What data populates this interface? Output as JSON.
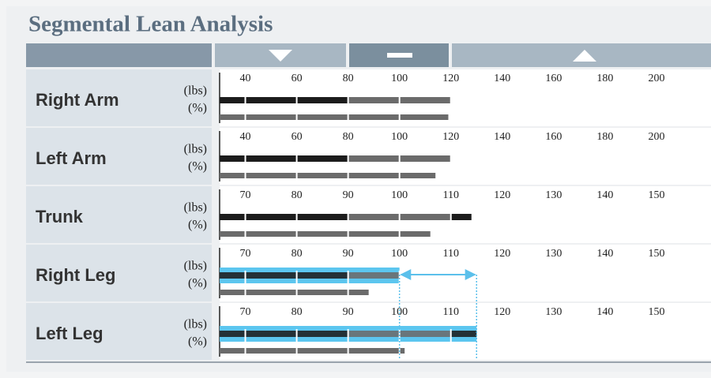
{
  "title": "Segmental Lean Analysis",
  "chart_data": [
    {
      "type": "bar",
      "title": "Right Arm",
      "categories": [
        "(lbs)",
        "(%)"
      ],
      "values": [
        120,
        119
      ],
      "xlim": [
        30,
        220
      ],
      "xticks": [
        40,
        60,
        80,
        100,
        120,
        140,
        160,
        180,
        200
      ],
      "normal_range": [
        80,
        120
      ],
      "color": "#6b6b6b",
      "outside_color": "#1c1c1c",
      "highlight": false
    },
    {
      "type": "bar",
      "title": "Left Arm",
      "categories": [
        "(lbs)",
        "(%)"
      ],
      "values": [
        120,
        114
      ],
      "xlim": [
        30,
        220
      ],
      "xticks": [
        40,
        60,
        80,
        100,
        120,
        140,
        160,
        180,
        200
      ],
      "normal_range": [
        80,
        120
      ],
      "color": "#6b6b6b",
      "outside_color": "#1c1c1c",
      "highlight": false
    },
    {
      "type": "bar",
      "title": "Trunk",
      "categories": [
        "(lbs)",
        "(%)"
      ],
      "values": [
        114,
        106
      ],
      "xlim": [
        65,
        160
      ],
      "xticks": [
        70,
        80,
        90,
        100,
        110,
        120,
        130,
        140,
        150
      ],
      "normal_range": [
        90,
        110
      ],
      "color": "#6b6b6b",
      "outside_color": "#1c1c1c",
      "highlight": false
    },
    {
      "type": "bar",
      "title": "Right Leg",
      "categories": [
        "(lbs)",
        "(%)"
      ],
      "values": [
        100,
        94
      ],
      "xlim": [
        65,
        160
      ],
      "xticks": [
        70,
        80,
        90,
        100,
        110,
        120,
        130,
        140,
        150
      ],
      "normal_range": [
        90,
        110
      ],
      "color": "#6b6b6b",
      "outside_color": "#1c1c1c",
      "highlight": true
    },
    {
      "type": "bar",
      "title": "Left Leg",
      "categories": [
        "(lbs)",
        "(%)"
      ],
      "values": [
        115,
        101
      ],
      "xlim": [
        65,
        160
      ],
      "xticks": [
        70,
        80,
        90,
        100,
        110,
        120,
        130,
        140,
        150
      ],
      "normal_range": [
        90,
        110
      ],
      "color": "#6b6b6b",
      "outside_color": "#1c1c1c",
      "highlight": true
    }
  ]
}
